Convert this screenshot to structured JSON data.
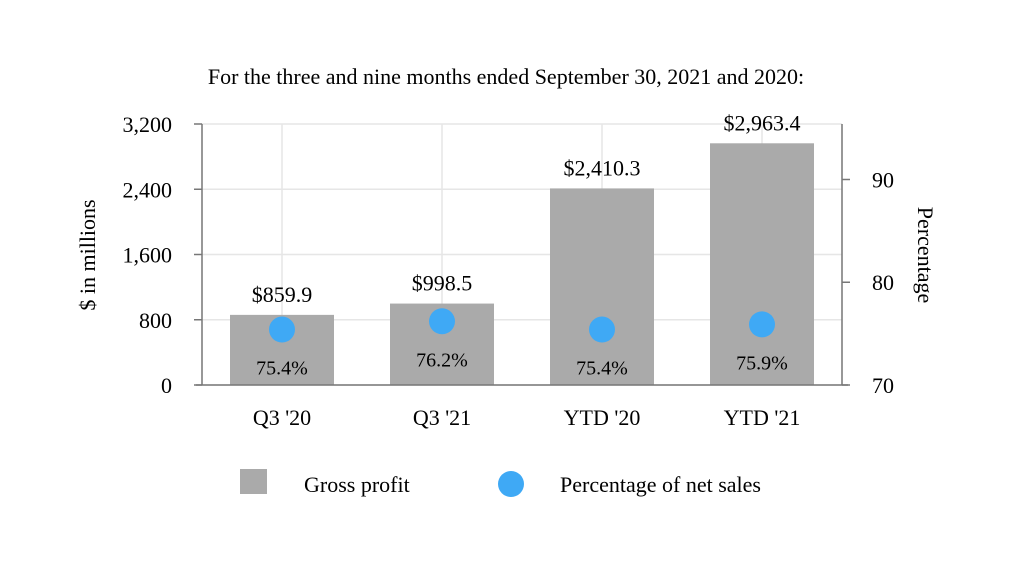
{
  "chart_data": {
    "type": "bar",
    "title": "For the three and nine months ended September 30, 2021 and 2020:",
    "categories": [
      "Q3 '20",
      "Q3 '21",
      "YTD '20",
      "YTD '21"
    ],
    "series": [
      {
        "name": "Gross profit",
        "axis": "left",
        "values": [
          859.9,
          998.5,
          2410.3,
          2963.4
        ],
        "labels": [
          "$859.9",
          "$998.5",
          "$2,410.3",
          "$2,963.4"
        ]
      },
      {
        "name": "Percentage of net sales",
        "axis": "right",
        "mark": "dot",
        "values": [
          75.4,
          76.2,
          75.4,
          75.9
        ],
        "labels": [
          "75.4%",
          "76.2%",
          "75.4%",
          "75.9%"
        ]
      }
    ],
    "ylabel": "$ in millions",
    "ylim": [
      0,
      3200
    ],
    "yticks": [
      0,
      800,
      1600,
      2400,
      3200
    ],
    "ytick_labels": [
      "0",
      "800",
      "1,600",
      "2,400",
      "3,200"
    ],
    "y2label": "Percentage",
    "y2lim": [
      70,
      95.4
    ],
    "y2ticks": [
      70,
      80,
      90
    ],
    "y2tick_labels": [
      "70",
      "80",
      "90"
    ],
    "grid": true,
    "legend": "bottom",
    "colors": {
      "bar": "#aaaaaa",
      "dot": "#3fa9f5",
      "grid": "#e6e6e6",
      "axis": "#777777"
    }
  }
}
